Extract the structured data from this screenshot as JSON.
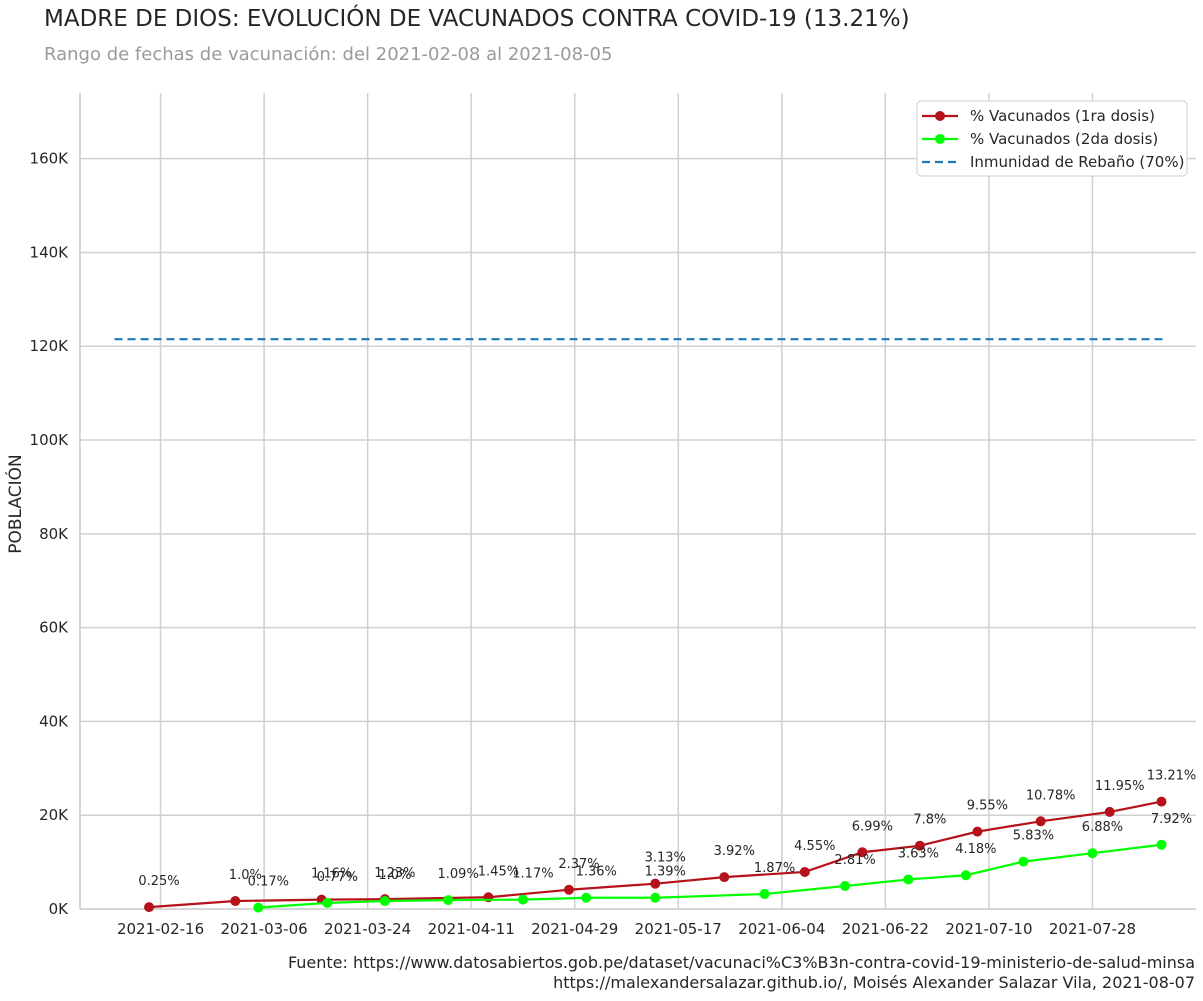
{
  "title": "MADRE DE DIOS: EVOLUCIÓN DE VACUNADOS CONTRA COVID-19 (13.21%)",
  "subtitle": "Rango de fechas de vacunación: del 2021-02-08 al 2021-08-05",
  "source_line1": "Fuente: https://www.datosabiertos.gob.pe/dataset/vacunaci%C3%B3n-contra-covid-19-ministerio-de-salud-minsa",
  "source_line2": "https://malexandersalazar.github.io/, Moisés Alexander Salazar Vila, 2021-08-07",
  "colors": {
    "dose1": "#b5121b",
    "dose2": "#00ff00",
    "herd": "#1f77b4",
    "grid": "#d0d0d0",
    "axis": "#c8c8c8"
  },
  "chart_data": {
    "type": "line",
    "title": "MADRE DE DIOS: EVOLUCIÓN DE VACUNADOS CONTRA COVID-19 (13.21%)",
    "ylabel": "POBLACIÓN",
    "xlabel": "",
    "xlim": [
      "2021-02-02",
      "2021-08-15"
    ],
    "ylim": [
      0,
      174000
    ],
    "x_ticks": [
      "2021-02-16",
      "2021-03-06",
      "2021-03-24",
      "2021-04-11",
      "2021-04-29",
      "2021-05-17",
      "2021-06-04",
      "2021-06-22",
      "2021-07-10",
      "2021-07-28"
    ],
    "y_ticks": [
      {
        "value": 0,
        "label": "0K"
      },
      {
        "value": 20000,
        "label": "20K"
      },
      {
        "value": 40000,
        "label": "40K"
      },
      {
        "value": 60000,
        "label": "60K"
      },
      {
        "value": 80000,
        "label": "80K"
      },
      {
        "value": 100000,
        "label": "100K"
      },
      {
        "value": 120000,
        "label": "120K"
      },
      {
        "value": 140000,
        "label": "140K"
      },
      {
        "value": 160000,
        "label": "160K"
      }
    ],
    "grid": true,
    "legend_position": "top-right",
    "series": [
      {
        "name": "% Vacunados (1ra dosis)",
        "style": "line-marker",
        "points": [
          {
            "x": "2021-02-14",
            "y": 400,
            "label": "0.25%"
          },
          {
            "x": "2021-03-01",
            "y": 1700,
            "label": "1.0%"
          },
          {
            "x": "2021-03-16",
            "y": 2000,
            "label": "1.16%"
          },
          {
            "x": "2021-03-27",
            "y": 2100,
            "label": "1.23%"
          },
          {
            "x": "2021-04-14",
            "y": 2500,
            "label": "1.45%"
          },
          {
            "x": "2021-04-28",
            "y": 4100,
            "label": "2.37%"
          },
          {
            "x": "2021-05-13",
            "y": 5400,
            "label": "3.13%"
          },
          {
            "x": "2021-05-25",
            "y": 6800,
            "label": "3.92%"
          },
          {
            "x": "2021-06-08",
            "y": 7900,
            "label": "4.55%"
          },
          {
            "x": "2021-06-18",
            "y": 12100,
            "label": "6.99%"
          },
          {
            "x": "2021-06-28",
            "y": 13500,
            "label": "7.8%"
          },
          {
            "x": "2021-07-08",
            "y": 16500,
            "label": "9.55%"
          },
          {
            "x": "2021-07-19",
            "y": 18700,
            "label": "10.78%"
          },
          {
            "x": "2021-07-31",
            "y": 20700,
            "label": "11.95%"
          },
          {
            "x": "2021-08-09",
            "y": 22900,
            "label": "13.21%"
          }
        ]
      },
      {
        "name": "% Vacunados (2da dosis)",
        "style": "line-marker",
        "points": [
          {
            "x": "2021-03-05",
            "y": 300,
            "label": "0.17%"
          },
          {
            "x": "2021-03-17",
            "y": 1300,
            "label": "0.77%"
          },
          {
            "x": "2021-03-27",
            "y": 1700,
            "label": "1.0%"
          },
          {
            "x": "2021-04-07",
            "y": 1900,
            "label": "1.09%"
          },
          {
            "x": "2021-04-20",
            "y": 2000,
            "label": "1.17%"
          },
          {
            "x": "2021-05-01",
            "y": 2400,
            "label": "1.36%"
          },
          {
            "x": "2021-05-13",
            "y": 2400,
            "label": "1.39%"
          },
          {
            "x": "2021-06-01",
            "y": 3200,
            "label": "1.87%"
          },
          {
            "x": "2021-06-15",
            "y": 4900,
            "label": "2.81%"
          },
          {
            "x": "2021-06-26",
            "y": 6300,
            "label": "3.63%"
          },
          {
            "x": "2021-07-06",
            "y": 7200,
            "label": "4.18%"
          },
          {
            "x": "2021-07-16",
            "y": 10100,
            "label": "5.83%"
          },
          {
            "x": "2021-07-28",
            "y": 11900,
            "label": "6.88%"
          },
          {
            "x": "2021-08-09",
            "y": 13700,
            "label": "7.92%"
          }
        ]
      },
      {
        "name": "Inmunidad de Rebaño (70%)",
        "style": "dashed",
        "points": [
          {
            "x": "2021-02-08",
            "y": 121500
          },
          {
            "x": "2021-08-10",
            "y": 121500
          }
        ]
      }
    ]
  }
}
